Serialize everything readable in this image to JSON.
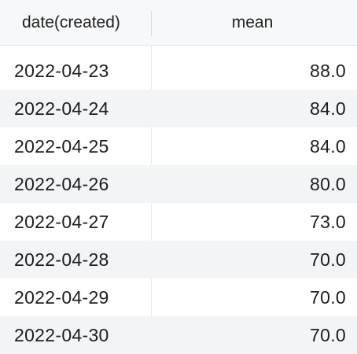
{
  "columns": [
    "date(created)",
    "mean"
  ],
  "rows": [
    {
      "date": "2022-04-23",
      "mean": "88.0"
    },
    {
      "date": "2022-04-24",
      "mean": "84.0"
    },
    {
      "date": "2022-04-25",
      "mean": "84.0"
    },
    {
      "date": "2022-04-26",
      "mean": "80.0"
    },
    {
      "date": "2022-04-27",
      "mean": "73.0"
    },
    {
      "date": "2022-04-28",
      "mean": "70.0"
    },
    {
      "date": "2022-04-29",
      "mean": "70.0"
    },
    {
      "date": "2022-04-30",
      "mean": "70.0"
    }
  ],
  "colors": {
    "header_bg": "#f7f8f9",
    "alt_row_bg": "#f2f4f5",
    "row_bg": "#ffffff"
  }
}
